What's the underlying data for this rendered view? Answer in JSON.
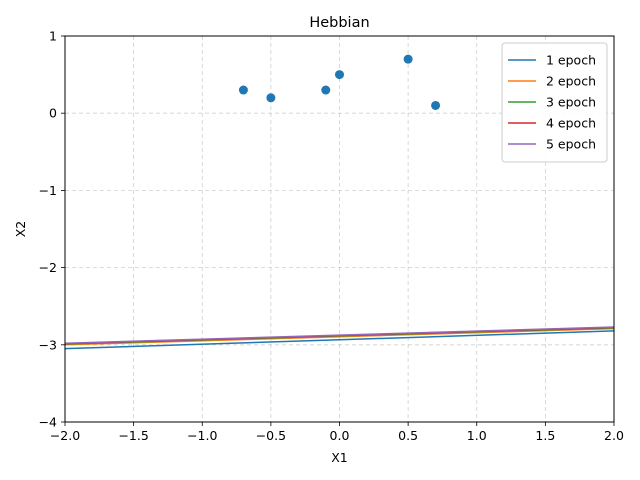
{
  "chart_data": {
    "type": "line",
    "title": "Hebbian",
    "xlabel": "X1",
    "ylabel": "X2",
    "xlim": [
      -2.0,
      2.0
    ],
    "ylim": [
      -4,
      1
    ],
    "x_ticks": [
      "−2.0",
      "−1.5",
      "−1.0",
      "−0.5",
      "0.0",
      "0.5",
      "1.0",
      "1.5",
      "2.0"
    ],
    "x_tick_values": [
      -2.0,
      -1.5,
      -1.0,
      -0.5,
      0.0,
      0.5,
      1.0,
      1.5,
      2.0
    ],
    "y_ticks": [
      "−4",
      "−3",
      "−2",
      "−1",
      "0",
      "1"
    ],
    "y_tick_values": [
      -4,
      -3,
      -2,
      -1,
      0,
      1
    ],
    "grid": true,
    "legend_position": "top-right",
    "scatter_points": {
      "color": "#1f77b4",
      "x": [
        -0.7,
        -0.5,
        -0.1,
        0.0,
        0.5,
        0.7
      ],
      "y": [
        0.3,
        0.2,
        0.3,
        0.5,
        0.7,
        0.1
      ]
    },
    "series": [
      {
        "name": "1 epoch",
        "color": "#1f77b4",
        "x": [
          -2.0,
          2.0
        ],
        "y": [
          -3.05,
          -2.82
        ]
      },
      {
        "name": "2 epoch",
        "color": "#ff7f0e",
        "x": [
          -2.0,
          2.0
        ],
        "y": [
          -3.0,
          -2.79
        ]
      },
      {
        "name": "3 epoch",
        "color": "#2ca02c",
        "x": [
          -2.0,
          2.0
        ],
        "y": [
          -2.99,
          -2.78
        ]
      },
      {
        "name": "4 epoch",
        "color": "#d62728",
        "x": [
          -2.0,
          2.0
        ],
        "y": [
          -2.985,
          -2.775
        ]
      },
      {
        "name": "5 epoch",
        "color": "#9467bd",
        "x": [
          -2.0,
          2.0
        ],
        "y": [
          -2.98,
          -2.77
        ]
      }
    ]
  }
}
